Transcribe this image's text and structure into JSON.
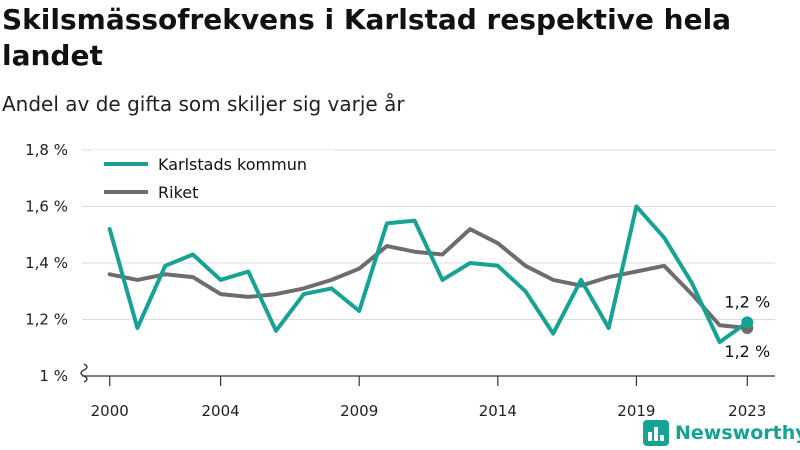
{
  "header": {
    "title": "Skilsmässofrekvens i Karlstad respektive hela landet",
    "subtitle": "Andel av de gifta som skiljer sig varje år"
  },
  "brand": {
    "name": "Newsworthy",
    "logo_icon": "bar-chart-icon",
    "color": "#16a394"
  },
  "chart_data": {
    "type": "line",
    "x": [
      2000,
      2001,
      2002,
      2003,
      2004,
      2005,
      2006,
      2007,
      2008,
      2009,
      2010,
      2011,
      2012,
      2013,
      2014,
      2015,
      2016,
      2017,
      2018,
      2019,
      2020,
      2021,
      2022,
      2023
    ],
    "series": [
      {
        "name": "Karlstads kommun",
        "color": "#16a394",
        "values": [
          1.52,
          1.17,
          1.39,
          1.43,
          1.34,
          1.37,
          1.16,
          1.29,
          1.31,
          1.23,
          1.54,
          1.55,
          1.34,
          1.4,
          1.39,
          1.3,
          1.15,
          1.34,
          1.17,
          1.6,
          1.49,
          1.33,
          1.12,
          1.19
        ]
      },
      {
        "name": "Riket",
        "color": "#6d6d6d",
        "values": [
          1.36,
          1.34,
          1.36,
          1.35,
          1.29,
          1.28,
          1.29,
          1.31,
          1.34,
          1.38,
          1.46,
          1.44,
          1.43,
          1.52,
          1.47,
          1.39,
          1.34,
          1.32,
          1.35,
          1.37,
          1.39,
          1.29,
          1.18,
          1.17
        ]
      }
    ],
    "x_ticks": [
      2000,
      2004,
      2009,
      2014,
      2019,
      2023
    ],
    "y_ticks": [
      1.0,
      1.2,
      1.4,
      1.6,
      1.8
    ],
    "y_tick_labels": [
      "1 %",
      "1,2 %",
      "1,4 %",
      "1,6 %",
      "1,8 %"
    ],
    "ylim": [
      1.0,
      1.8
    ],
    "xlim": [
      1999,
      2024
    ],
    "y_axis_break": true,
    "grid": "horizontal",
    "legend": "top-left",
    "end_labels": [
      {
        "series": "Karlstads kommun",
        "text": "1,2 %",
        "position": "above"
      },
      {
        "series": "Riket",
        "text": "1,2 %",
        "position": "below"
      }
    ]
  }
}
